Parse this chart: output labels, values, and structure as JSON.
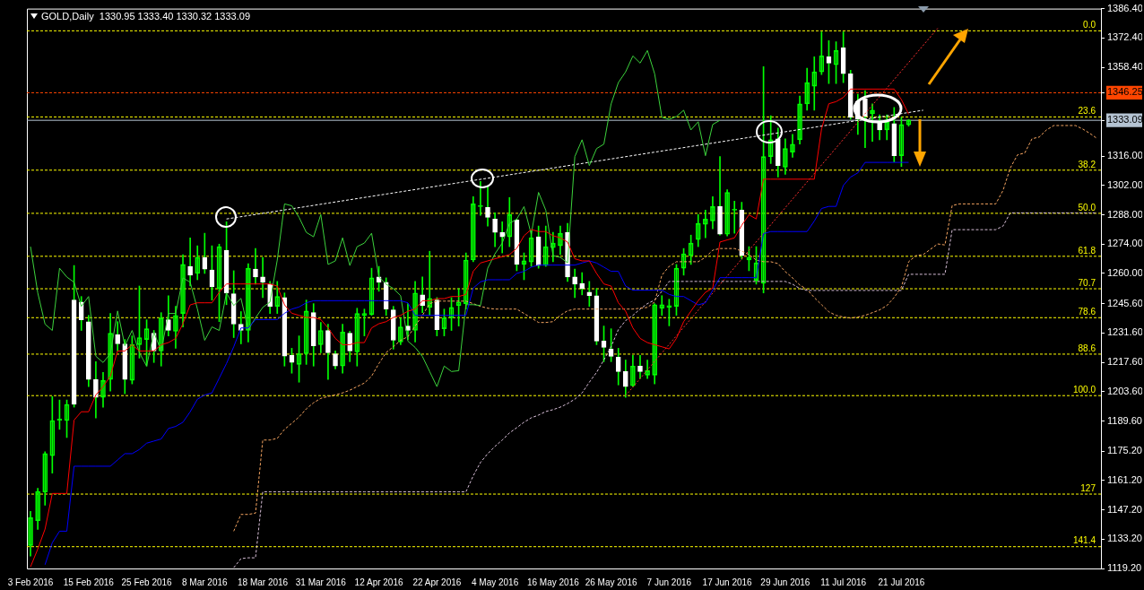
{
  "chart_data": {
    "type": "candlestick",
    "title": "GOLD,Daily  1330.95 1333.40 1330.32 1333.09",
    "categories": [
      "3 Feb 2016",
      null,
      null,
      null,
      null,
      null,
      null,
      null,
      "15 Feb 2016",
      null,
      null,
      null,
      null,
      null,
      null,
      null,
      "25 Feb 2016",
      null,
      null,
      null,
      null,
      null,
      null,
      null,
      "8 Mar 2016",
      null,
      null,
      null,
      null,
      null,
      null,
      null,
      "18 Mar 2016",
      null,
      null,
      null,
      null,
      null,
      null,
      null,
      "31 Mar 2016",
      null,
      null,
      null,
      null,
      null,
      null,
      null,
      "12 Apr 2016",
      null,
      null,
      null,
      null,
      null,
      null,
      null,
      "22 Apr 2016",
      null,
      null,
      null,
      null,
      null,
      null,
      null,
      "4 May 2016",
      null,
      null,
      null,
      null,
      null,
      null,
      null,
      "16 May 2016",
      null,
      null,
      null,
      null,
      null,
      null,
      null,
      "26 May 2016",
      null,
      null,
      null,
      null,
      null,
      null,
      null,
      "7 Jun 2016",
      null,
      null,
      null,
      null,
      null,
      null,
      null,
      "17 Jun 2016",
      null,
      null,
      null,
      null,
      null,
      null,
      null,
      "29 Jun 2016",
      null,
      null,
      null,
      null,
      null,
      null,
      null,
      "11 Jul 2016",
      null,
      null,
      null,
      null,
      null,
      null,
      null,
      "21 Jul 2016",
      null,
      null,
      null,
      null,
      null,
      null,
      null,
      null,
      null,
      null,
      null,
      null,
      null,
      null,
      null,
      null,
      null,
      null,
      null,
      null,
      null,
      null,
      null,
      null,
      null,
      null,
      null
    ],
    "color": "#00ff00",
    "colors": [
      "#00ff00",
      "#00ff00",
      "#00ff00",
      "#00ff00",
      "#00ff00",
      "#00ff00",
      "#ffffff",
      "#ffffff",
      "#ffffff",
      "#ffffff",
      "#00ff00",
      "#00ff00",
      "#ffffff",
      "#ffffff",
      "#00ff00",
      "#00ff00",
      "#00ff00",
      "#ffffff",
      "#00ff00",
      "#ffffff",
      "#00ff00",
      "#00ff00",
      "#ffffff",
      "#00ff00",
      "#ffffff",
      "#ffffff",
      "#00ff00",
      "#ffffff",
      "#ffffff",
      "#ffffff",
      "#00ff00",
      "#ffffff",
      "#ffffff",
      "#ffffff",
      "#00ff00",
      "#ffffff",
      "#ffffff",
      "#00ff00",
      "#00ff00",
      "#ffffff",
      "#00ff00",
      "#ffffff",
      "#ffffff",
      "#00ff00",
      "#ffffff",
      "#00ff00",
      "#00ff00",
      "#00ff00",
      "#ffffff",
      "#ffffff",
      "#ffffff",
      "#00ff00",
      "#ffffff",
      "#00ff00",
      "#ffffff",
      "#00ff00",
      "#ffffff",
      "#00ff00",
      "#00ff00",
      "#00ff00",
      "#00ff00",
      "#00ff00",
      "#00ff00",
      "#ffffff",
      "#ffffff",
      "#ffffff",
      "#00ff00",
      "#ffffff",
      "#00ff00",
      "#00ff00",
      "#ffffff",
      "#00ff00",
      "#00ff00",
      "#00ff00",
      "#ffffff",
      "#ffffff",
      "#ffffff",
      "#ffffff",
      "#ffffff",
      "#ffffff",
      "#ffffff",
      "#ffffff",
      "#ffffff",
      "#00ff00",
      "#ffffff",
      "#00ff00",
      "#00ff00",
      "#00ff00",
      "#00ff00",
      "#00ff00",
      "#00ff00",
      "#00ff00",
      "#00ff00",
      "#00ff00",
      "#00ff00",
      "#ffffff",
      "#00ff00",
      "#00ff00",
      "#ffffff",
      "#00ff00",
      "#00ff00",
      "#00ff00",
      "#00ff00",
      "#ffffff",
      "#00ff00",
      "#00ff00",
      "#00ff00",
      "#00ff00",
      "#00ff00",
      "#00ff00",
      "#ffffff",
      "#00ff00",
      "#ffffff",
      "#ffffff",
      "#ffffff",
      "#ffffff",
      "#00ff00",
      "#ffffff",
      "#00ff00",
      "#ffffff",
      "#00ff00",
      "#00ff00",
      null,
      null,
      null,
      null,
      null,
      null,
      null,
      null,
      null,
      null,
      null,
      null,
      null,
      null,
      null,
      null,
      null,
      null,
      null,
      null,
      null,
      null,
      null,
      null,
      null,
      null
    ],
    "ohlc": [
      [
        1130.2,
        1146.4,
        1125.1,
        1143.4
      ],
      [
        1142,
        1157.5,
        1137.9,
        1156
      ],
      [
        1155.7,
        1174.9,
        1149.4,
        1174
      ],
      [
        1173,
        1201.3,
        1164.7,
        1189.8
      ],
      [
        1189.8,
        1199.6,
        1185.6,
        1190.5
      ],
      [
        1189.8,
        1199.6,
        1181.7,
        1197.5
      ],
      [
        1247.3,
        1263.8,
        1196.2,
        1197.5
      ],
      [
        1246.4,
        1249,
        1232.8,
        1237.9
      ],
      [
        1237,
        1240,
        1206,
        1209.4
      ],
      [
        1209.4,
        1217.9,
        1191,
        1200.9
      ],
      [
        1200.9,
        1212.8,
        1196.2,
        1209
      ],
      [
        1209.4,
        1240.9,
        1203.9,
        1231.5
      ],
      [
        1230.7,
        1237,
        1223,
        1226.4
      ],
      [
        1226.4,
        1228.5,
        1202.6,
        1209.4
      ],
      [
        1209,
        1230.2,
        1207.3,
        1226
      ],
      [
        1226,
        1254,
        1219.6,
        1229.4
      ],
      [
        1228.5,
        1237.9,
        1215.8,
        1233.6
      ],
      [
        1231.5,
        1232.8,
        1217.5,
        1223
      ],
      [
        1223,
        1241.3,
        1215.8,
        1238.8
      ],
      [
        1237.9,
        1249.4,
        1230.2,
        1232.8
      ],
      [
        1232.4,
        1244.3,
        1224.3,
        1240
      ],
      [
        1240.9,
        1268.9,
        1234.5,
        1264.3
      ],
      [
        1263.4,
        1277,
        1254,
        1259.2
      ],
      [
        1260,
        1273.2,
        1257,
        1267.7
      ],
      [
        1267.7,
        1279.2,
        1260,
        1262.1
      ],
      [
        1261.7,
        1273.2,
        1247.3,
        1253.6
      ],
      [
        1252.8,
        1274,
        1237,
        1272.8
      ],
      [
        1271.1,
        1284.7,
        1245.1,
        1250.7
      ],
      [
        1250.3,
        1261.3,
        1229.4,
        1235.8
      ],
      [
        1235.8,
        1241.8,
        1226.4,
        1232.8
      ],
      [
        1232.8,
        1264.7,
        1227.3,
        1262.5
      ],
      [
        1262.1,
        1271.9,
        1254.9,
        1258.3
      ],
      [
        1258.3,
        1267.7,
        1248.5,
        1255.8
      ],
      [
        1254.9,
        1256.2,
        1240.9,
        1244.3
      ],
      [
        1244.3,
        1256.2,
        1240.9,
        1249
      ],
      [
        1248.5,
        1250.7,
        1215.8,
        1220.5
      ],
      [
        1220.9,
        1224.3,
        1212.4,
        1217.5
      ],
      [
        1216.6,
        1230.2,
        1208.1,
        1221.7
      ],
      [
        1221.7,
        1247.3,
        1216.6,
        1242.1
      ],
      [
        1241.3,
        1245.6,
        1215.8,
        1225.5
      ],
      [
        1226,
        1236.6,
        1222.2,
        1232.8
      ],
      [
        1232.8,
        1235.8,
        1209.4,
        1222.2
      ],
      [
        1221.7,
        1223,
        1214.5,
        1215.8
      ],
      [
        1215.8,
        1235.8,
        1212.4,
        1232
      ],
      [
        1231.5,
        1232.4,
        1217.9,
        1223
      ],
      [
        1222.6,
        1243.4,
        1215.8,
        1240.9
      ],
      [
        1240,
        1243,
        1230.2,
        1240.9
      ],
      [
        1240.4,
        1262.5,
        1240,
        1257.9
      ],
      [
        1258.3,
        1263.4,
        1251.5,
        1255.8
      ],
      [
        1255.8,
        1257.9,
        1240,
        1243
      ],
      [
        1242.6,
        1244.3,
        1223.9,
        1228.1
      ],
      [
        1227.3,
        1238.7,
        1226,
        1234.5
      ],
      [
        1234.9,
        1245.6,
        1228.5,
        1232.8
      ],
      [
        1232.8,
        1256.2,
        1227.3,
        1250.7
      ],
      [
        1249.8,
        1258.3,
        1241.3,
        1244.7
      ],
      [
        1243.8,
        1270.6,
        1240,
        1248.1
      ],
      [
        1247.3,
        1248.5,
        1230.2,
        1233.2
      ],
      [
        1233.6,
        1243,
        1230.2,
        1238.8
      ],
      [
        1238.8,
        1248.5,
        1232.8,
        1243.8
      ],
      [
        1244.7,
        1252.8,
        1234.9,
        1246.4
      ],
      [
        1245.6,
        1269.8,
        1243,
        1266.4
      ],
      [
        1266.4,
        1296.6,
        1265.6,
        1293.2
      ],
      [
        1291.9,
        1303.9,
        1287.7,
        1292.3
      ],
      [
        1291.5,
        1301.7,
        1282.6,
        1286.8
      ],
      [
        1286,
        1289,
        1272.8,
        1279.6
      ],
      [
        1279.6,
        1284.7,
        1269.8,
        1277.5
      ],
      [
        1277.5,
        1296.2,
        1272.8,
        1288.1
      ],
      [
        1285.5,
        1286,
        1261.3,
        1264.3
      ],
      [
        1264.3,
        1269.8,
        1257,
        1266
      ],
      [
        1265.5,
        1280.5,
        1263.4,
        1277
      ],
      [
        1277.5,
        1282.6,
        1262.5,
        1263.8
      ],
      [
        1263.8,
        1282.6,
        1263.4,
        1272.8
      ],
      [
        1272.3,
        1279.6,
        1265.6,
        1274.5
      ],
      [
        1273.2,
        1282.6,
        1269,
        1279.2
      ],
      [
        1279.6,
        1283.9,
        1256.2,
        1258.3
      ],
      [
        1258.3,
        1262.1,
        1248.5,
        1254.9
      ],
      [
        1255.3,
        1260.4,
        1249.8,
        1252.8
      ],
      [
        1251.1,
        1256.2,
        1244.3,
        1249.4
      ],
      [
        1249.4,
        1252.8,
        1226,
        1227.7
      ],
      [
        1227.7,
        1234.9,
        1217.9,
        1224.7
      ],
      [
        1223.9,
        1233.6,
        1217.9,
        1220.4
      ],
      [
        1220,
        1224.3,
        1206.8,
        1213.2
      ],
      [
        1213.2,
        1218.7,
        1200.9,
        1206
      ],
      [
        1206.4,
        1220.9,
        1206,
        1215.8
      ],
      [
        1215.8,
        1220.9,
        1209.8,
        1213.2
      ],
      [
        1211.5,
        1218.7,
        1209.8,
        1213.6
      ],
      [
        1211.5,
        1245.6,
        1207.3,
        1245.1
      ],
      [
        1243.4,
        1249.4,
        1240,
        1245.1
      ],
      [
        1243.8,
        1247.7,
        1235,
        1244.7
      ],
      [
        1244.3,
        1264.3,
        1240,
        1262.5
      ],
      [
        1262.5,
        1271.9,
        1259.2,
        1269.4
      ],
      [
        1268.5,
        1278.3,
        1264.3,
        1274.5
      ],
      [
        1276.2,
        1288.1,
        1272.8,
        1283.9
      ],
      [
        1283.4,
        1290.2,
        1277,
        1285.9
      ],
      [
        1285.1,
        1296.6,
        1281.3,
        1291.9
      ],
      [
        1291.9,
        1315.8,
        1278.3,
        1278.7
      ],
      [
        1278.7,
        1300,
        1277.9,
        1298.7
      ],
      [
        1290.2,
        1294.5,
        1279.2,
        1290.2
      ],
      [
        1290.2,
        1294,
        1266.8,
        1268.5
      ],
      [
        1266.4,
        1272.8,
        1261.3,
        1267.7
      ],
      [
        1256.6,
        1272.8,
        1254.9,
        1265.1
      ],
      [
        1255.3,
        1358.7,
        1250.7,
        1315.8
      ],
      [
        1315.8,
        1335.3,
        1312.4,
        1323.8
      ],
      [
        1324.3,
        1329.4,
        1306,
        1311.5
      ],
      [
        1310.7,
        1324.3,
        1307.3,
        1319.6
      ],
      [
        1317.9,
        1326.4,
        1315.4,
        1321.7
      ],
      [
        1323.8,
        1344.7,
        1321.7,
        1340.9
      ],
      [
        1340.9,
        1357.9,
        1337.9,
        1351.1
      ],
      [
        1349.4,
        1363.4,
        1337.9,
        1356.2
      ],
      [
        1356.2,
        1375.3,
        1354.9,
        1363.8
      ],
      [
        1363.4,
        1371.1,
        1350.6,
        1360.4
      ],
      [
        1359.6,
        1370.6,
        1350.6,
        1366.4
      ],
      [
        1367.7,
        1375.3,
        1351.1,
        1355.3
      ],
      [
        1355.3,
        1357,
        1333.6,
        1334.5
      ],
      [
        1342.1,
        1345.5,
        1326.4,
        1333.6
      ],
      [
        1343.4,
        1347.2,
        1320,
        1334.9
      ],
      [
        1336.2,
        1340.9,
        1323,
        1337.9
      ],
      [
        1332.4,
        1335.7,
        1323.8,
        1328.5
      ],
      [
        1328.5,
        1335.7,
        1323.8,
        1332.4
      ],
      [
        1331.5,
        1339.2,
        1313.2,
        1316.2
      ],
      [
        1316.2,
        1334.5,
        1311.1,
        1331.1
      ],
      [
        1330.95,
        1333.4,
        1330.32,
        1333.09
      ],
      null,
      null,
      null,
      null,
      null,
      null,
      null,
      null,
      null,
      null,
      null,
      null,
      null,
      null,
      null,
      null,
      null,
      null,
      null,
      null,
      null,
      null,
      null,
      null,
      null,
      null
    ],
    "series": [
      {
        "type": "line",
        "color": "#ff0000",
        "values": [
          1120,
          1128.5,
          1138,
          1155,
          1155,
          1155,
          1190,
          1194,
          1194,
          1202,
          1206,
          1211,
          1223,
          1223,
          1226,
          1223,
          1223,
          1223,
          1226,
          1227,
          1229,
          1236,
          1245,
          1246,
          1246,
          1246,
          1251,
          1255,
          1255,
          1255,
          1255,
          1255,
          1255,
          1255,
          1254,
          1245,
          1241,
          1240,
          1239,
          1239,
          1238,
          1234,
          1229,
          1226,
          1226,
          1227,
          1227,
          1234,
          1236,
          1237,
          1239,
          1240,
          1242,
          1243,
          1247,
          1247,
          1248,
          1248,
          1249,
          1249,
          1250,
          1261,
          1265,
          1266,
          1267,
          1268,
          1269,
          1272,
          1278,
          1281,
          1280,
          1280,
          1278,
          1277,
          1275,
          1267,
          1266,
          1266,
          1260,
          1255,
          1254,
          1246,
          1242,
          1234,
          1229,
          1227,
          1226,
          1225,
          1224,
          1229,
          1237,
          1242,
          1247,
          1251,
          1253,
          1275,
          1276,
          1277,
          1283,
          1288,
          1286,
          1305,
          1305,
          1305,
          1305,
          1305,
          1305,
          1305,
          1305,
          1329,
          1341,
          1342,
          1344,
          1348,
          1348,
          1348,
          1348,
          1348,
          1348,
          1348,
          1343,
          1336,
          null,
          null,
          null,
          null,
          null,
          null,
          null,
          null,
          null,
          null,
          null,
          null,
          null,
          null,
          null,
          null,
          null,
          null,
          null,
          null,
          null,
          null,
          null,
          null,
          null,
          null
        ]
      },
      {
        "type": "line",
        "color": "#0000ff",
        "values": [
          null,
          null,
          1121,
          1131.5,
          1137,
          1137,
          1168,
          1168,
          1168,
          1168,
          1168,
          1168,
          1171,
          1174,
          1174,
          1176,
          1179,
          1180,
          1181,
          1186,
          1187,
          1189,
          1194,
          1200,
          1202,
          1203,
          1210,
          1217,
          1225,
          1234,
          1234,
          1238,
          1238,
          1238,
          1238,
          1241,
          1243,
          1244,
          1246,
          1247,
          1247,
          1247,
          1247,
          1247,
          1247,
          1247,
          1247,
          1247,
          1247,
          1247,
          1247,
          1247,
          1246,
          1240,
          1240,
          1240,
          1240,
          1240,
          1240,
          1240,
          1240,
          1253,
          1256,
          1257,
          1257,
          1257,
          1257,
          1260,
          1261,
          1263,
          1264,
          1264,
          1264,
          1264,
          1264,
          1264,
          1265,
          1266,
          1265,
          1263,
          1261,
          1261,
          1254,
          1252,
          1252,
          1252,
          1252,
          1252,
          1250,
          1249,
          1249,
          1247,
          1245,
          1246,
          1252,
          1258,
          1258,
          1258,
          1258,
          1258,
          1258,
          1279,
          1280,
          1280,
          1280,
          1280,
          1280,
          1280,
          1285,
          1291,
          1292,
          1292,
          1302,
          1306,
          1308,
          1313,
          1313,
          1313,
          1313,
          1313,
          1313,
          1313,
          null,
          null,
          null,
          null,
          null,
          null,
          null,
          null,
          null,
          null,
          null,
          null,
          null,
          null,
          null,
          null,
          null,
          null,
          null,
          null,
          null,
          null,
          null,
          null,
          null,
          null
        ]
      },
      {
        "type": "line",
        "color": "#3cd23c",
        "values": [
          1272.8,
          1250.7,
          1235.8,
          1232.8,
          1262.5,
          1258.3,
          1255.8,
          1244.3,
          1249,
          1220.5,
          1217.5,
          1221.7,
          1242.1,
          1225.5,
          1232.8,
          1222.2,
          1215.8,
          1232,
          1223,
          1240.9,
          1240.9,
          1257.9,
          1255.8,
          1243,
          1228.1,
          1234.5,
          1232.8,
          1250.7,
          1244.7,
          1248.1,
          1233.2,
          1238.8,
          1243.8,
          1246.4,
          1266.4,
          1293.2,
          1292.3,
          1286.8,
          1279.6,
          1277.5,
          1288.1,
          1264.3,
          1266,
          1277,
          1263.8,
          1272.8,
          1274.5,
          1279.2,
          1258.3,
          1254.9,
          1252.8,
          1249.4,
          1227.7,
          1224.7,
          1220.4,
          1213.2,
          1206,
          1215.8,
          1213.2,
          1213.6,
          1245.1,
          1245.1,
          1244.7,
          1262.5,
          1269.4,
          1274.5,
          1283.9,
          1285.9,
          1291.9,
          1278.7,
          1298.7,
          1290.2,
          1268.5,
          1267.7,
          1265.1,
          1315.8,
          1323.8,
          1311.5,
          1319.6,
          1321.7,
          1340.9,
          1351.1,
          1356.2,
          1363.8,
          1360.4,
          1366.4,
          1355.3,
          1334.5,
          1333.6,
          1334.9,
          1337.9,
          1328.5,
          1332.4,
          1316.2,
          1331.1,
          1333.1,
          null,
          null,
          null,
          null,
          null,
          null,
          null,
          null,
          null,
          null,
          null,
          null,
          null,
          null,
          null,
          null,
          null,
          null,
          null,
          null,
          null,
          null,
          null,
          null,
          null,
          null,
          null,
          null,
          null,
          null,
          null,
          null,
          null,
          null,
          null,
          null,
          null,
          null,
          null,
          null,
          null,
          null,
          null,
          null,
          null,
          null,
          null,
          null,
          null,
          null,
          null,
          null
        ]
      },
      {
        "type": "line",
        "color": "#f4a460",
        "line_style": "dashed",
        "values": [
          null,
          null,
          null,
          null,
          null,
          null,
          null,
          null,
          null,
          null,
          null,
          null,
          null,
          null,
          null,
          null,
          null,
          null,
          null,
          null,
          null,
          null,
          null,
          null,
          null,
          null,
          null,
          null,
          1137,
          1145,
          1145,
          1145.6,
          1180.5,
          1180.5,
          1181.3,
          1185.6,
          1188.5,
          1191.5,
          1195.4,
          1198.3,
          1200.4,
          1201.3,
          1202,
          1203,
          1204.3,
          1206,
          1207.7,
          1211,
          1217,
          1222.2,
          1225.1,
          1228.1,
          1229.8,
          1234.9,
          1240,
          1245.6,
          1246.8,
          1246.8,
          1246.8,
          1246.8,
          1246.8,
          1245.6,
          1244.3,
          1243.4,
          1243,
          1243,
          1243,
          1243,
          1240.9,
          1238.8,
          1236.6,
          1236.6,
          1237,
          1240,
          1242.2,
          1243,
          1243,
          1243,
          1243,
          1243,
          1243,
          1243,
          1243,
          1243,
          1243.4,
          1243.8,
          1246.4,
          1259.2,
          1263.4,
          1265.6,
          1265.6,
          1265.6,
          1265.6,
          1267.7,
          1271.1,
          1271.9,
          1271.9,
          1271.9,
          1270.7,
          1269,
          1266.4,
          1265.6,
          1265.6,
          1264.7,
          1260.9,
          1257.9,
          1254.5,
          1252.4,
          1248.5,
          1245.1,
          1241.7,
          1240,
          1239.2,
          1238.7,
          1239.2,
          1240,
          1241.3,
          1242.6,
          1244.7,
          1248.5,
          1253.6,
          1265.6,
          1268.5,
          1269,
          1271.5,
          1274.1,
          1273.6,
          1292.4,
          1293.2,
          1293.2,
          1293.2,
          1293.2,
          1293.2,
          1293.2,
          1299.6,
          1310.3,
          1316.6,
          1317.5,
          1324.3,
          1325.1,
          1328.5,
          1330.6,
          1330.6,
          1330.6,
          1330.6,
          1328.9,
          1326.8,
          1324.3
        ]
      },
      {
        "type": "line",
        "color": "#d8bfd8",
        "line_style": "dashed",
        "values": [
          null,
          null,
          null,
          null,
          null,
          null,
          null,
          null,
          null,
          null,
          null,
          null,
          null,
          null,
          null,
          null,
          null,
          null,
          null,
          null,
          null,
          null,
          null,
          null,
          null,
          null,
          null,
          null,
          1119.6,
          1123.9,
          1124.3,
          1124.3,
          1155.8,
          1155.8,
          1155.8,
          1155.8,
          1155.8,
          1155.8,
          1155.8,
          1155.8,
          1155.8,
          1155.8,
          1155.8,
          1155.8,
          1155.8,
          1155.8,
          1155.8,
          1155.8,
          1155.8,
          1155.8,
          1155.8,
          1155.8,
          1155.8,
          1155.8,
          1155.8,
          1155.8,
          1155.8,
          1155.8,
          1155.8,
          1155.8,
          1155.8,
          1163.4,
          1169.8,
          1174,
          1177.5,
          1180.5,
          1183.9,
          1186.4,
          1189,
          1191.1,
          1192.4,
          1194.1,
          1195,
          1196.2,
          1197.9,
          1200,
          1203,
          1208.1,
          1212.8,
          1218.7,
          1225.1,
          1233.2,
          1237.5,
          1240,
          1243,
          1245.6,
          1247.3,
          1251.5,
          1256.2,
          1256.2,
          1256.2,
          1256.2,
          1256.2,
          1256.2,
          1256.2,
          1256.2,
          1256.2,
          1256.2,
          1256.2,
          1256.2,
          1256.2,
          1256.2,
          1256.2,
          1256.2,
          1256.2,
          1254.9,
          1252.8,
          1251.9,
          1251.9,
          1251.9,
          1251.9,
          1251.9,
          1251.9,
          1251.9,
          1251.9,
          1251.9,
          1251.9,
          1251.9,
          1251.9,
          1251.9,
          1251.9,
          1259.6,
          1259.6,
          1259.6,
          1259.6,
          1259.6,
          1259.6,
          1280.9,
          1280.9,
          1280.9,
          1280.9,
          1280.9,
          1280.9,
          1280.9,
          1282.6,
          1288.9,
          1288.9,
          1288.9,
          1288.9,
          1288.9,
          1288.9,
          1288.9,
          1288.9,
          1288.9,
          1288.9,
          1288.9,
          1288.9,
          1288.9
        ]
      },
      {
        "type": "line",
        "color": "#ffffff",
        "line_style": "dashed",
        "values": [
          null,
          null,
          null,
          null,
          null,
          null,
          null,
          null,
          null,
          null,
          null,
          null,
          null,
          null,
          null,
          null,
          null,
          null,
          null,
          null,
          null,
          null,
          null,
          null,
          null,
          null,
          null,
          1286,
          null,
          null,
          null,
          null,
          null,
          null,
          null,
          null,
          null,
          null,
          null,
          null,
          null,
          null,
          null,
          null,
          null,
          null,
          null,
          null,
          null,
          null,
          null,
          null,
          null,
          null,
          null,
          null,
          null,
          null,
          null,
          null,
          null,
          null,
          null,
          null,
          null,
          null,
          null,
          null,
          null,
          null,
          null,
          null,
          null,
          null,
          null,
          null,
          null,
          null,
          null,
          null,
          null,
          null,
          null,
          null,
          null,
          null,
          null,
          null,
          null,
          null,
          null,
          null,
          null,
          null,
          null,
          null,
          null,
          null,
          null,
          null,
          null,
          null,
          null,
          null,
          null,
          null,
          null,
          null,
          null,
          null,
          null,
          null,
          null,
          null,
          null,
          null,
          null,
          null,
          null,
          null,
          null,
          null,
          null,
          1337.9,
          null,
          null,
          null,
          null,
          null,
          null,
          null,
          null,
          null,
          null,
          null,
          null,
          null,
          null,
          null,
          null,
          null,
          null,
          null,
          null,
          null,
          null,
          null,
          null
        ]
      },
      {
        "type": "line",
        "color": "#ff3030",
        "line_style": "dotted",
        "values": [
          null,
          null,
          null,
          null,
          null,
          null,
          null,
          null,
          null,
          null,
          null,
          null,
          null,
          null,
          null,
          null,
          null,
          null,
          null,
          null,
          null,
          null,
          null,
          null,
          null,
          null,
          null,
          null,
          null,
          null,
          null,
          null,
          null,
          null,
          null,
          null,
          null,
          null,
          null,
          null,
          null,
          null,
          null,
          null,
          null,
          null,
          null,
          null,
          null,
          null,
          null,
          null,
          null,
          null,
          null,
          null,
          null,
          null,
          null,
          null,
          null,
          null,
          null,
          null,
          null,
          null,
          null,
          null,
          null,
          null,
          null,
          null,
          null,
          null,
          null,
          null,
          null,
          null,
          null,
          null,
          null,
          null,
          1201.7,
          null,
          null,
          null,
          null,
          null,
          null,
          null,
          null,
          null,
          null,
          null,
          null,
          null,
          null,
          null,
          null,
          null,
          null,
          null,
          null,
          null,
          null,
          null,
          null,
          null,
          null,
          null,
          null,
          null,
          null,
          null,
          null,
          null,
          null,
          null,
          null,
          null,
          null,
          null,
          null,
          null,
          null,
          1377,
          null,
          null,
          null,
          null,
          null,
          null,
          null,
          null,
          null,
          null,
          null,
          null,
          null,
          null,
          null,
          null,
          null,
          null,
          null,
          null,
          null,
          null
        ]
      }
    ],
    "ref_lines": [
      {
        "axis": "y",
        "value": 1375.8,
        "color": "#ffff00",
        "line_style": "dashed"
      },
      {
        "axis": "y",
        "value": 1334.7,
        "color": "#ffff00",
        "line_style": "dashed"
      },
      {
        "axis": "y",
        "value": 1309.3,
        "color": "#ffff00",
        "line_style": "dashed"
      },
      {
        "axis": "y",
        "value": 1288.7,
        "color": "#ffff00",
        "line_style": "dashed"
      },
      {
        "axis": "y",
        "value": 1268.2,
        "color": "#ffff00",
        "line_style": "dashed"
      },
      {
        "axis": "y",
        "value": 1252.7,
        "color": "#ffff00",
        "line_style": "dashed"
      },
      {
        "axis": "y",
        "value": 1238.9,
        "color": "#ffff00",
        "line_style": "dashed"
      },
      {
        "axis": "y",
        "value": 1221.5,
        "color": "#ffff00",
        "line_style": "dashed"
      },
      {
        "axis": "y",
        "value": 1201.7,
        "color": "#ffff00",
        "line_style": "dashed"
      },
      {
        "axis": "y",
        "value": 1154.7,
        "color": "#ffff00",
        "line_style": "dashed"
      },
      {
        "axis": "y",
        "value": 1129.6,
        "color": "#ffff00",
        "line_style": "dashed"
      },
      {
        "axis": "y",
        "value": 1346.25,
        "color": "#ff4500",
        "line_style": "dashed"
      },
      {
        "axis": "y",
        "value": 1333.09,
        "color": "#b4c3d2",
        "line_style": "solid"
      }
    ],
    "annotations": [
      {
        "text": "0.0",
        "y": 1375.8
      },
      {
        "text": "23.6",
        "y": 1334.7
      },
      {
        "text": "38.2",
        "y": 1309.3
      },
      {
        "text": "50.0",
        "y": 1288.7
      },
      {
        "text": "61.8",
        "y": 1268.2
      },
      {
        "text": "70.7",
        "y": 1252.7
      },
      {
        "text": "78.6",
        "y": 1238.9
      },
      {
        "text": "88.6",
        "y": 1221.5
      },
      {
        "text": "100.0",
        "y": 1201.7
      },
      {
        "text": "127",
        "y": 1154.7
      },
      {
        "text": "141.4",
        "y": 1129.6
      }
    ],
    "ylim": [
      1119.2,
      1386.4
    ],
    "yticks": [
      {
        "value": 1386.4,
        "label": "1386.40"
      },
      {
        "value": 1372.4,
        "label": "1372.40"
      },
      {
        "value": 1358.4,
        "label": "1358.40"
      },
      {
        "value": 1346.25,
        "label": "1346.25"
      },
      {
        "value": 1333.09,
        "label": "1333.09"
      },
      {
        "value": 1316,
        "label": "1316.00"
      },
      {
        "value": 1302,
        "label": "1302.00"
      },
      {
        "value": 1288,
        "label": "1288.00"
      },
      {
        "value": 1274,
        "label": "1274.00"
      },
      {
        "value": 1260,
        "label": "1260.00"
      },
      {
        "value": 1245.6,
        "label": "1245.60"
      },
      {
        "value": 1231.6,
        "label": "1231.60"
      },
      {
        "value": 1217.6,
        "label": "1217.60"
      },
      {
        "value": 1203.6,
        "label": "1203.60"
      },
      {
        "value": 1189.6,
        "label": "1189.60"
      },
      {
        "value": 1175.2,
        "label": "1175.20"
      },
      {
        "value": 1161.2,
        "label": "1161.20"
      },
      {
        "value": 1147.2,
        "label": "1147.20"
      },
      {
        "value": 1133.2,
        "label": "1133.20"
      },
      {
        "value": 1119.2,
        "label": "1119.20"
      }
    ],
    "grid": false,
    "legend": false
  }
}
